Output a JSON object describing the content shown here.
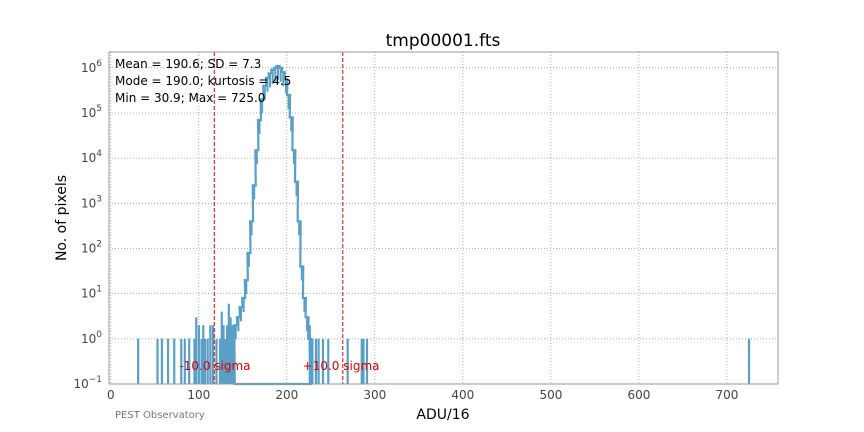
{
  "chart_data": {
    "type": "histogram",
    "title": "tmp00001.fts",
    "xlabel": "ADU/16",
    "ylabel": "No. of pixels",
    "xlim": [
      -2,
      758
    ],
    "yscale": "log",
    "ylim_exponents": [
      -1,
      6.35
    ],
    "xticks": [
      "0",
      "100",
      "200",
      "300",
      "400",
      "500",
      "600",
      "700"
    ],
    "yticks": [
      "-1",
      "0",
      "1",
      "2",
      "3",
      "4",
      "5",
      "6"
    ],
    "grid": true,
    "series_color": "#5a9fc6",
    "annotation_color": "#dd0000",
    "stats": [
      "Mean = 190.6; SD = 7.3",
      "Mode = 190.0; kurtosis = 4.5",
      "Min = 30.9; Max = 725.0"
    ],
    "sigma_lines": [
      {
        "x": 117.6,
        "label": "-10.0 sigma",
        "label_x": 78
      },
      {
        "x": 263.6,
        "label": "+10.0 sigma",
        "label_x": 218
      }
    ],
    "sigma_label_y": 0.25,
    "isolated_bins": [
      {
        "x": 31,
        "y": 1
      },
      {
        "x": 53,
        "y": 1
      },
      {
        "x": 58,
        "y": 1
      },
      {
        "x": 65,
        "y": 1
      },
      {
        "x": 72,
        "y": 1
      },
      {
        "x": 80,
        "y": 1
      },
      {
        "x": 84,
        "y": 1
      },
      {
        "x": 89,
        "y": 1
      },
      {
        "x": 95,
        "y": 1
      },
      {
        "x": 97,
        "y": 3
      },
      {
        "x": 100,
        "y": 2
      },
      {
        "x": 103,
        "y": 1
      },
      {
        "x": 105,
        "y": 2
      },
      {
        "x": 107,
        "y": 1
      },
      {
        "x": 110,
        "y": 1
      },
      {
        "x": 113,
        "y": 2
      },
      {
        "x": 116,
        "y": 2
      },
      {
        "x": 120,
        "y": 1
      },
      {
        "x": 124,
        "y": 1
      },
      {
        "x": 126,
        "y": 4
      },
      {
        "x": 128,
        "y": 2
      },
      {
        "x": 130,
        "y": 1
      },
      {
        "x": 132,
        "y": 2
      },
      {
        "x": 134,
        "y": 6
      },
      {
        "x": 136,
        "y": 3
      },
      {
        "x": 138,
        "y": 2
      },
      {
        "x": 140,
        "y": 2
      },
      {
        "x": 226,
        "y": 2
      },
      {
        "x": 229,
        "y": 1
      },
      {
        "x": 233,
        "y": 1
      },
      {
        "x": 236,
        "y": 1
      },
      {
        "x": 241,
        "y": 1
      },
      {
        "x": 247,
        "y": 1
      },
      {
        "x": 269,
        "y": 1
      },
      {
        "x": 285,
        "y": 1
      },
      {
        "x": 287,
        "y": 1
      },
      {
        "x": 291,
        "y": 1
      },
      {
        "x": 725,
        "y": 1
      }
    ],
    "main_peak": {
      "x": [
        142,
        145,
        148,
        151,
        154,
        157,
        160,
        163,
        166,
        169,
        172,
        175,
        178,
        181,
        184,
        187,
        190,
        193,
        196,
        199,
        202,
        205,
        208,
        211,
        214,
        217,
        220,
        223,
        226
      ],
      "y": [
        2,
        3,
        5,
        8,
        20,
        80,
        400,
        2500,
        15000,
        70000,
        200000,
        400000,
        600000,
        750000,
        900000,
        1000000,
        1100000,
        1000000,
        800000,
        550000,
        250000,
        80000,
        15000,
        3000,
        400,
        40,
        8,
        3,
        1
      ]
    },
    "credit": "PEST Observatory"
  }
}
